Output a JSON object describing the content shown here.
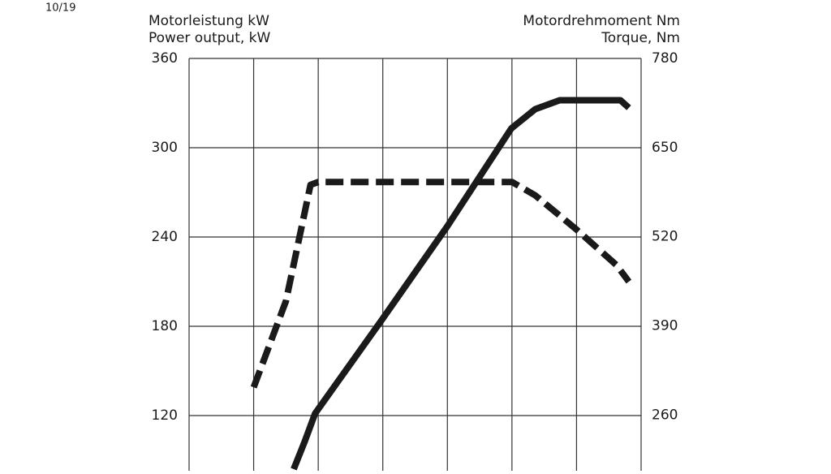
{
  "page_label": "10/19",
  "chart_data": {
    "type": "line",
    "y_label": [
      "Motorleistung kW",
      "Power output, kW"
    ],
    "y2_label": [
      "Motordrehmoment Nm",
      "Torque, Nm"
    ],
    "xlim": [
      0,
      7
    ],
    "xticks": [
      0,
      1,
      2,
      3,
      4,
      5,
      6,
      7
    ],
    "ylim": [
      84,
      360
    ],
    "yticks": [
      120,
      180,
      240,
      300,
      360
    ],
    "y2lim": [
      181,
      780
    ],
    "y2ticks": [
      260,
      390,
      520,
      650,
      780
    ],
    "grid": true,
    "series": [
      {
        "color": "#1a1a1a",
        "dashed": true,
        "axis": "y",
        "x": [
          1.0,
          1.5,
          1.88,
          2.0,
          5.0,
          5.36,
          6.0,
          6.62,
          6.81
        ],
        "values": [
          139,
          197,
          275,
          277,
          277,
          268,
          245,
          221,
          210
        ]
      },
      {
        "color": "#1a1a1a",
        "dashed": false,
        "axis": "y2",
        "x": [
          1.62,
          1.79,
          1.95,
          2.98,
          3.99,
          4.99,
          5.36,
          5.74,
          6.68,
          6.81
        ],
        "values": [
          181,
          221,
          262,
          398,
          534,
          678,
          706,
          719,
          719,
          708
        ]
      }
    ]
  }
}
